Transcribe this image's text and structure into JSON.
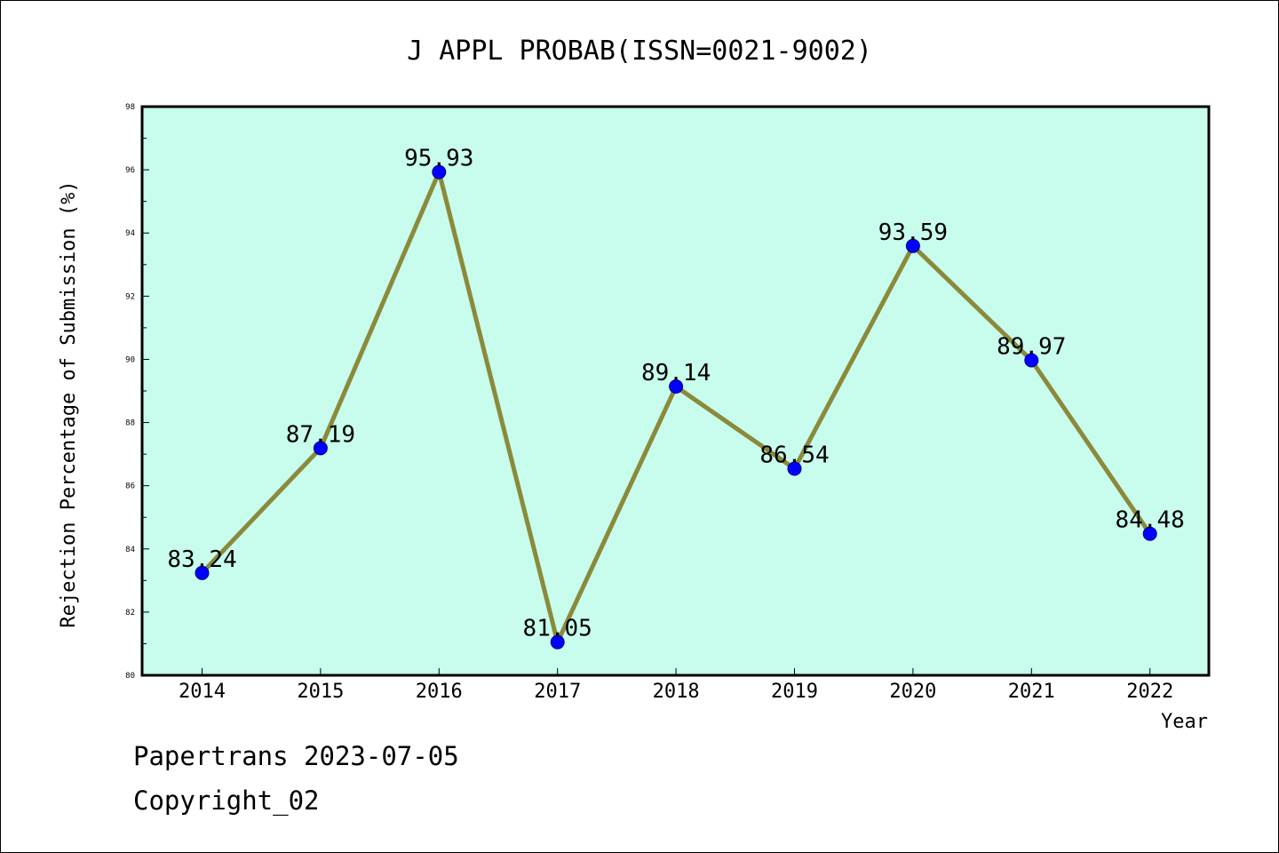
{
  "chart_data": {
    "type": "line",
    "title": "J APPL PROBAB(ISSN=0021-9002)",
    "xlabel": "Year",
    "ylabel": "Rejection Percentage of Submission (%)",
    "categories": [
      "2014",
      "2015",
      "2016",
      "2017",
      "2018",
      "2019",
      "2020",
      "2021",
      "2022"
    ],
    "values": [
      83.24,
      87.19,
      95.93,
      81.05,
      89.14,
      86.54,
      93.59,
      89.97,
      84.48
    ],
    "data_labels": [
      "83.24",
      "87.19",
      "95.93",
      "81.05",
      "89.14",
      "86.54",
      "93.59",
      "89.97",
      "84.48"
    ],
    "ylim": [
      80,
      98
    ],
    "yticks": [
      "80",
      "82",
      "84",
      "86",
      "88",
      "90",
      "92",
      "94",
      "96",
      "98"
    ],
    "grid": false,
    "colors": {
      "plot_background": "#c8fced",
      "line": "#8a8a3a",
      "marker": "#0000ff"
    }
  },
  "footer": {
    "line1": "Papertrans 2023-07-05",
    "line2": "Copyright_02"
  }
}
